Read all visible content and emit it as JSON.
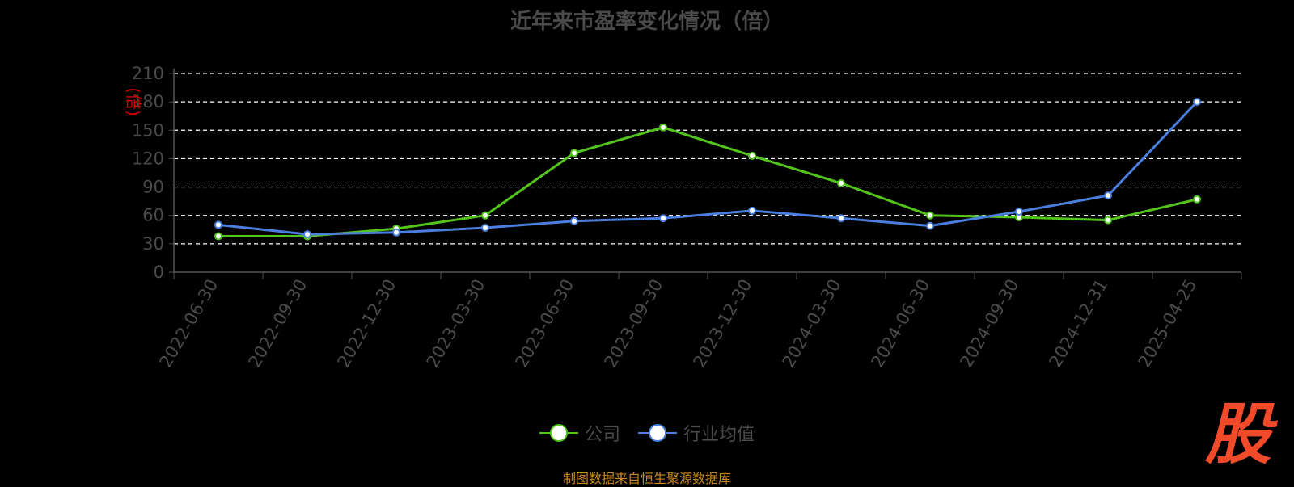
{
  "title": "近年来市盈率变化情况（倍）",
  "source_note": "制图数据来自恒生聚源数据库",
  "logo_text": "股",
  "colors": {
    "company": "#52c41a",
    "industry": "#4a7fe0",
    "axis_text": "#4a4a4a",
    "unit": "#cc0000",
    "source": "#c98a1c",
    "logo": "#f04a2a"
  },
  "chart_data": {
    "type": "line",
    "title": "近年来市盈率变化情况（倍）",
    "ylabel": "(倍)",
    "ylim": [
      0,
      210
    ],
    "yticks": [
      "0",
      "30",
      "60",
      "90",
      "120",
      "150",
      "180",
      "210"
    ],
    "grid": true,
    "legend_position": "bottom",
    "x": [
      "2022-06-30",
      "2022-09-30",
      "2022-12-30",
      "2023-03-30",
      "2023-06-30",
      "2023-09-30",
      "2023-12-30",
      "2024-03-30",
      "2024-06-30",
      "2024-09-30",
      "2024-12-31",
      "2025-04-25"
    ],
    "series": [
      {
        "name": "公司",
        "values": [
          38,
          38,
          46,
          60,
          126,
          153,
          123,
          94,
          60,
          58,
          55,
          77
        ]
      },
      {
        "name": "行业均值",
        "values": [
          50,
          40,
          42,
          47,
          54,
          57,
          65,
          57,
          49,
          64,
          81,
          180
        ]
      }
    ]
  }
}
